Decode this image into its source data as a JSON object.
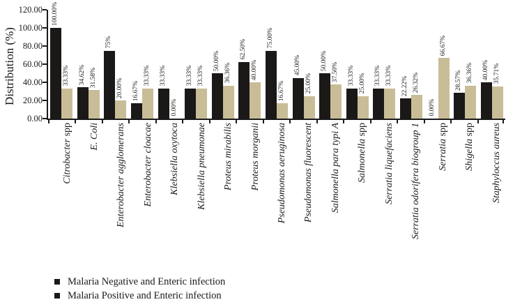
{
  "chart_data": {
    "type": "bar",
    "title": "",
    "ylabel": "Distribution (%)",
    "xlabel": "",
    "ylim": [
      0,
      120
    ],
    "ytick_values": [
      0,
      20,
      40,
      60,
      80,
      100,
      120
    ],
    "ytick_labels": [
      "0.00",
      "20.00",
      "40.00",
      "60.00",
      "80.00",
      "100.00",
      "120.00"
    ],
    "grid": false,
    "legend_position": "bottom-left",
    "bar_colors": {
      "negative": "#1b1917",
      "positive": "#c9bd97"
    },
    "categories": [
      {
        "italic": "Citrobacter",
        "plain": "spp"
      },
      {
        "italic": "E. Coli",
        "plain": ""
      },
      {
        "italic": "Enterobacter agglomerans",
        "plain": ""
      },
      {
        "italic": "Enterobacter cloacae",
        "plain": ""
      },
      {
        "italic": "Klebsiella oxytoca",
        "plain": ""
      },
      {
        "italic": "Klebsiella pneumonae",
        "plain": ""
      },
      {
        "italic": "Proteus mirabilis",
        "plain": ""
      },
      {
        "italic": "Proteus morganii",
        "plain": ""
      },
      {
        "italic": "Pseudomonas aeruginosa",
        "plain": ""
      },
      {
        "italic": "Pseudomonas fluorescent",
        "plain": ""
      },
      {
        "italic": "Salmonella para typi A",
        "plain": ""
      },
      {
        "italic": "Salmonella",
        "plain": "spp"
      },
      {
        "italic": "Serratia liquefaciens",
        "plain": ""
      },
      {
        "italic": "Serratia odorifera biogroup 1",
        "plain": ""
      },
      {
        "italic": "Serratia",
        "plain": "spp"
      },
      {
        "italic": "Shigella",
        "plain": "spp"
      },
      {
        "italic": "Staphyloccus aureus",
        "plain": ""
      }
    ],
    "series": [
      {
        "name": "Malaria Negative and Enteric infection",
        "color": "#1b1917",
        "values": [
          100,
          34.62,
          75,
          16.67,
          33.33,
          33.33,
          50,
          62.5,
          75,
          45,
          50,
          33.33,
          33.33,
          22.22,
          0,
          28.57,
          40
        ],
        "labels": [
          "100.00%",
          "34.62%",
          "75%",
          "16.67%",
          "33.33%",
          "33.33%",
          "50.00%",
          "62.50%",
          "75.00%",
          "45.00%",
          "50.00%",
          "33.33%",
          "33.33%",
          "22.22%",
          "0.00%",
          "28.57%",
          "40.00%"
        ]
      },
      {
        "name": "Malaria Positive and Enteric infection",
        "color": "#c9bd97",
        "values": [
          33.33,
          31.58,
          20,
          33.33,
          0,
          33.33,
          36.36,
          40,
          16.67,
          25,
          37.5,
          25,
          33.33,
          26.32,
          66.67,
          36.36,
          35.71
        ],
        "labels": [
          "33.33%",
          "31.58%",
          "20.00%",
          "33.33%",
          "0.00%",
          "33.33%",
          "36.36%",
          "40.00%",
          "16.67%",
          "25.00%",
          "37.50%",
          "25.00%",
          "33.33%",
          "26.32%",
          "66.67%",
          "36.36%",
          "35.71%"
        ]
      }
    ],
    "legend": [
      {
        "label": "Malaria Negative and Enteric infection",
        "marker_color": "#1b1917"
      },
      {
        "label": "Malaria Positive and Enteric infection",
        "marker_color": "#1b1917"
      }
    ]
  }
}
